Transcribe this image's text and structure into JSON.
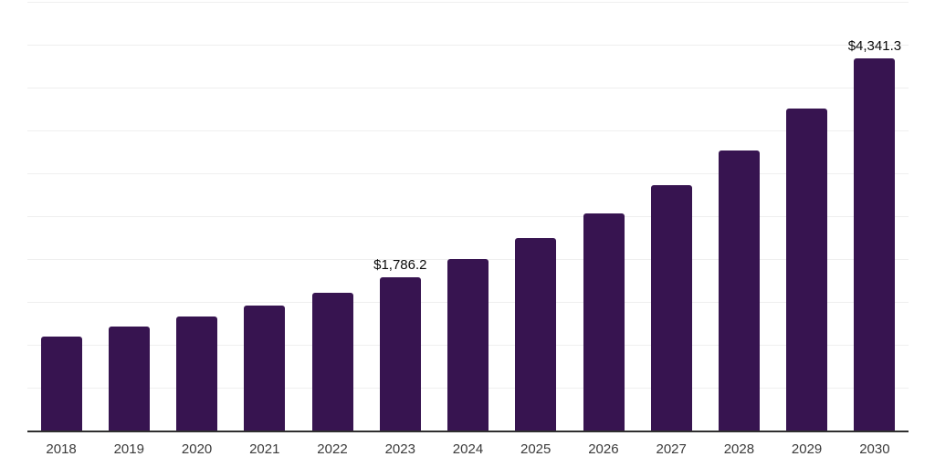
{
  "page": {
    "background": "#ffffff"
  },
  "chart_data": {
    "type": "bar",
    "title": "",
    "xlabel": "",
    "ylabel": "",
    "categories": [
      "2018",
      "2019",
      "2020",
      "2021",
      "2022",
      "2023",
      "2024",
      "2025",
      "2026",
      "2027",
      "2028",
      "2029",
      "2030"
    ],
    "values": [
      1093.4,
      1208.7,
      1325.2,
      1462.4,
      1610.3,
      1786.2,
      2001.5,
      2243.0,
      2528.4,
      2866.1,
      3267.2,
      3752.8,
      4341.3
    ],
    "data_labels": [
      {
        "category": "2023",
        "text": "$1,786.2"
      },
      {
        "category": "2030",
        "text": "$4,341.3"
      }
    ],
    "ylim": [
      0,
      5000
    ],
    "grid_step": 500,
    "grid": "horizontal-only",
    "y_tick_labels_shown": false,
    "legend_position": "none",
    "bar_color": "#371450",
    "axis_color": "#2f2f2f",
    "gridline_color": "#efefef",
    "tick_label_color": "#3a3a3a",
    "data_label_color": "#0a0a0a"
  }
}
